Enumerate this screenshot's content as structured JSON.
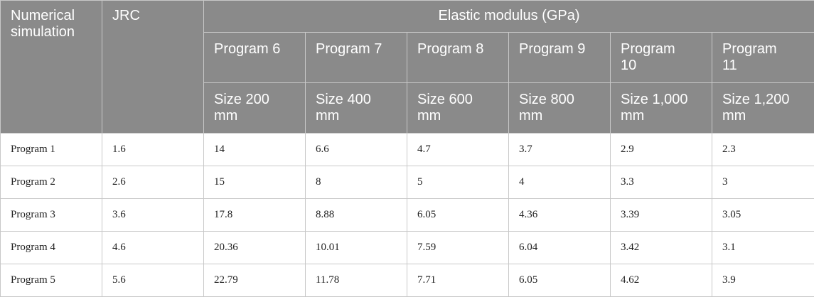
{
  "table": {
    "header": {
      "simulation": "Numerical simulation",
      "jrc": "JRC",
      "group": "Elastic modulus (GPa)",
      "programs": [
        "Program 6",
        "Program 7",
        "Program 8",
        "Program 9",
        "Program 10",
        "Program 11"
      ],
      "sizes": [
        "Size 200 mm",
        "Size 400 mm",
        "Size 600 mm",
        "Size 800 mm",
        "Size 1,000 mm",
        "Size 1,200 mm"
      ]
    },
    "rows": [
      [
        "Program 1",
        1.6,
        14,
        6.6,
        4.7,
        3.7,
        2.9,
        2.3
      ],
      [
        "Program 2",
        2.6,
        15,
        8,
        5,
        4,
        3.3,
        3
      ],
      [
        "Program 3",
        3.6,
        17.8,
        8.88,
        6.05,
        4.36,
        3.39,
        3.05
      ],
      [
        "Program 4",
        4.6,
        20.36,
        10.01,
        7.59,
        6.04,
        3.42,
        3.1
      ],
      [
        "Program 5",
        5.6,
        22.79,
        11.78,
        7.71,
        6.05,
        4.62,
        3.9
      ]
    ]
  }
}
